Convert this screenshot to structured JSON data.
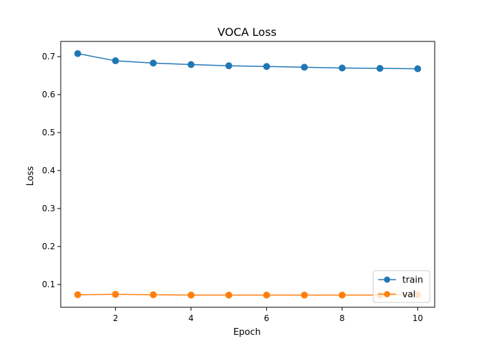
{
  "chart_data": {
    "type": "line",
    "title": "VOCA Loss",
    "xlabel": "Epoch",
    "ylabel": "Loss",
    "x": [
      1,
      2,
      3,
      4,
      5,
      6,
      7,
      8,
      9,
      10
    ],
    "xlim": [
      0.55,
      10.45
    ],
    "ylim": [
      0.04,
      0.74
    ],
    "xticks": [
      2,
      4,
      6,
      8,
      10
    ],
    "yticks": [
      0.1,
      0.2,
      0.3,
      0.4,
      0.5,
      0.6,
      0.7
    ],
    "xtick_labels": [
      "2",
      "4",
      "6",
      "8",
      "10"
    ],
    "ytick_labels": [
      "0.1",
      "0.2",
      "0.3",
      "0.4",
      "0.5",
      "0.6",
      "0.7"
    ],
    "grid": false,
    "legend_position": "lower-right",
    "series": [
      {
        "name": "train",
        "color": "#1f77b4",
        "marker": "circle",
        "values": [
          0.708,
          0.689,
          0.683,
          0.679,
          0.676,
          0.674,
          0.672,
          0.67,
          0.669,
          0.668
        ]
      },
      {
        "name": "val",
        "color": "#ff7f0e",
        "marker": "circle",
        "values": [
          0.073,
          0.074,
          0.073,
          0.072,
          0.072,
          0.072,
          0.072,
          0.072,
          0.072,
          0.073
        ]
      }
    ]
  }
}
